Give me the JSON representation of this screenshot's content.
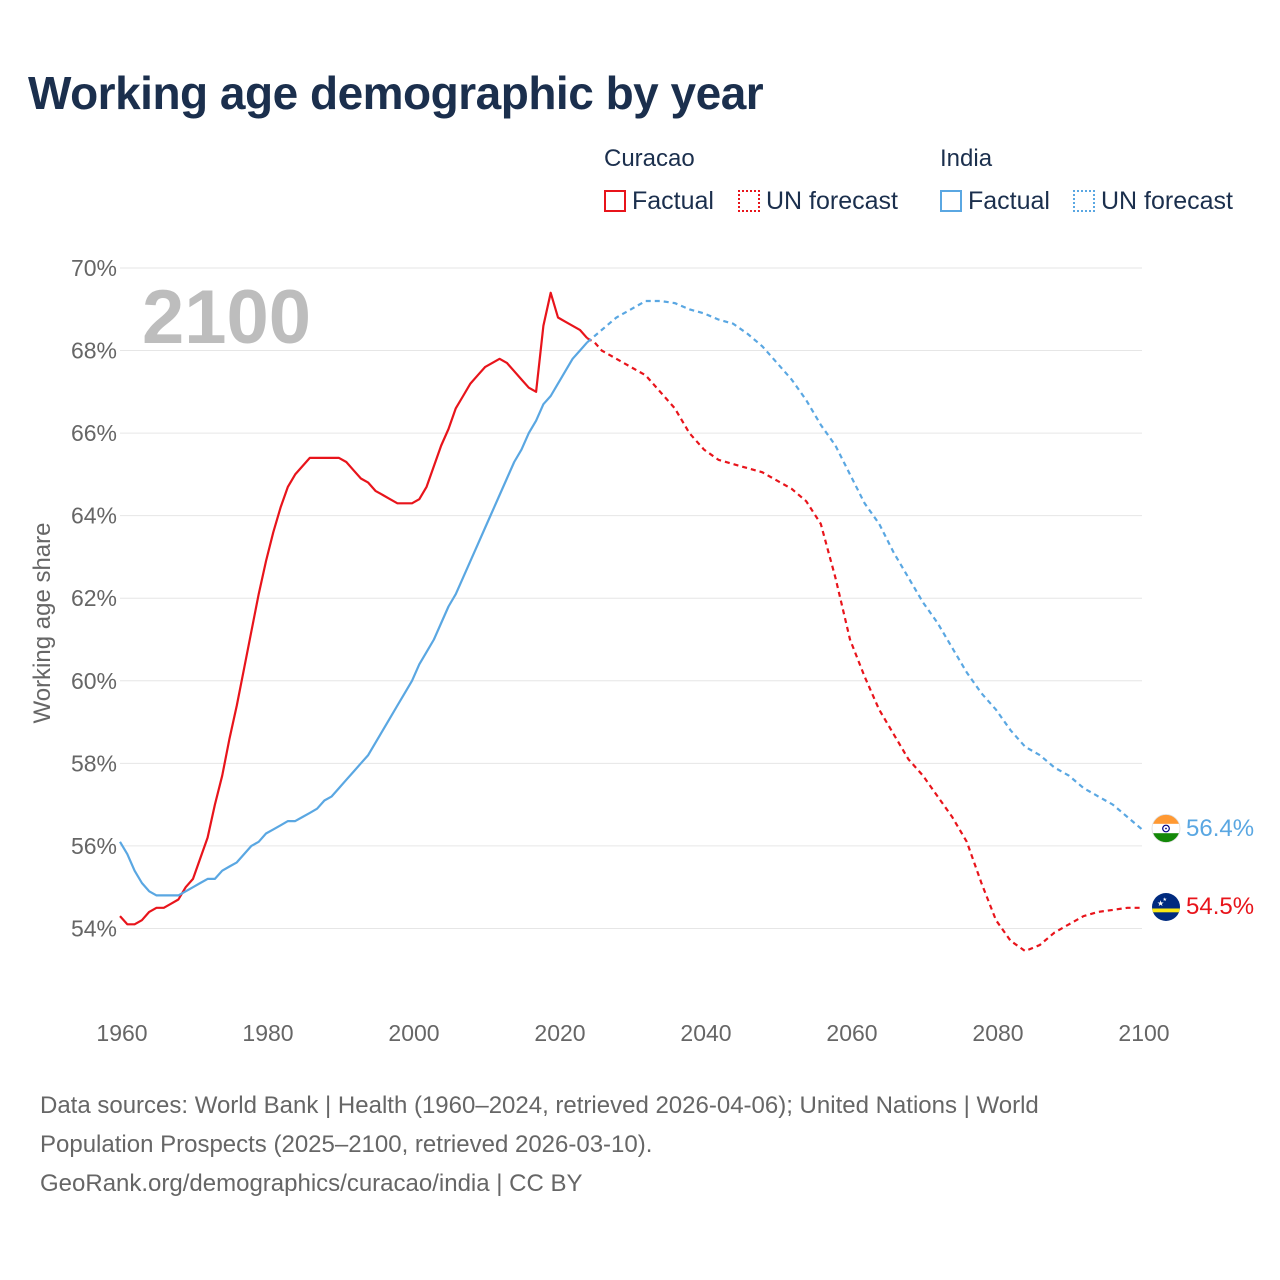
{
  "title": "Working age demographic by year",
  "legend": {
    "groups": [
      {
        "name": "Curacao",
        "color": "#e8141b",
        "items": [
          {
            "label": "Factual",
            "style": "solid"
          },
          {
            "label": "UN forecast",
            "style": "dotted"
          }
        ]
      },
      {
        "name": "India",
        "color": "#5aa7e2",
        "items": [
          {
            "label": "Factual",
            "style": "solid"
          },
          {
            "label": "UN forecast",
            "style": "dotted"
          }
        ]
      }
    ]
  },
  "sources": {
    "line1": "Data sources: World Bank | Health (1960–2024, retrieved 2026-04-06); United Nations | World",
    "line2": "Population Prospects (2025–2100, retrieved 2026-03-10).",
    "line3": "GeoRank.org/demographics/curacao/india | CC BY"
  },
  "chart_data": {
    "type": "line",
    "title": "Working age demographic by year",
    "year_watermark": "2100",
    "xlabel": "",
    "ylabel": "Working age share",
    "xlim": [
      1960,
      2100
    ],
    "ylim": [
      52,
      70
    ],
    "x_ticks": [
      {
        "value": 1960,
        "label": "1960"
      },
      {
        "value": 1980,
        "label": "1980"
      },
      {
        "value": 2000,
        "label": "2000"
      },
      {
        "value": 2020,
        "label": "2020"
      },
      {
        "value": 2040,
        "label": "2040"
      },
      {
        "value": 2060,
        "label": "2060"
      },
      {
        "value": 2080,
        "label": "2080"
      },
      {
        "value": 2100,
        "label": "2100"
      }
    ],
    "y_ticks": [
      {
        "value": 54,
        "label": "54%"
      },
      {
        "value": 56,
        "label": "56%"
      },
      {
        "value": 58,
        "label": "58%"
      },
      {
        "value": 60,
        "label": "60%"
      },
      {
        "value": 62,
        "label": "62%"
      },
      {
        "value": 64,
        "label": "64%"
      },
      {
        "value": 66,
        "label": "66%"
      },
      {
        "value": 68,
        "label": "68%"
      },
      {
        "value": 70,
        "label": "70%"
      }
    ],
    "grid": true,
    "factual_end_year": 2024,
    "series": [
      {
        "name": "Curacao",
        "color": "#e8141b",
        "end_label": "54.5%",
        "points": [
          [
            1960,
            54.3
          ],
          [
            1961,
            54.1
          ],
          [
            1962,
            54.1
          ],
          [
            1963,
            54.2
          ],
          [
            1964,
            54.4
          ],
          [
            1965,
            54.5
          ],
          [
            1966,
            54.5
          ],
          [
            1967,
            54.6
          ],
          [
            1968,
            54.7
          ],
          [
            1969,
            55.0
          ],
          [
            1970,
            55.2
          ],
          [
            1971,
            55.7
          ],
          [
            1972,
            56.2
          ],
          [
            1973,
            57.0
          ],
          [
            1974,
            57.7
          ],
          [
            1975,
            58.6
          ],
          [
            1976,
            59.4
          ],
          [
            1977,
            60.3
          ],
          [
            1978,
            61.2
          ],
          [
            1979,
            62.1
          ],
          [
            1980,
            62.9
          ],
          [
            1981,
            63.6
          ],
          [
            1982,
            64.2
          ],
          [
            1983,
            64.7
          ],
          [
            1984,
            65.0
          ],
          [
            1985,
            65.2
          ],
          [
            1986,
            65.4
          ],
          [
            1987,
            65.4
          ],
          [
            1988,
            65.4
          ],
          [
            1989,
            65.4
          ],
          [
            1990,
            65.4
          ],
          [
            1991,
            65.3
          ],
          [
            1992,
            65.1
          ],
          [
            1993,
            64.9
          ],
          [
            1994,
            64.8
          ],
          [
            1995,
            64.6
          ],
          [
            1996,
            64.5
          ],
          [
            1997,
            64.4
          ],
          [
            1998,
            64.3
          ],
          [
            1999,
            64.3
          ],
          [
            2000,
            64.3
          ],
          [
            2001,
            64.4
          ],
          [
            2002,
            64.7
          ],
          [
            2003,
            65.2
          ],
          [
            2004,
            65.7
          ],
          [
            2005,
            66.1
          ],
          [
            2006,
            66.6
          ],
          [
            2007,
            66.9
          ],
          [
            2008,
            67.2
          ],
          [
            2009,
            67.4
          ],
          [
            2010,
            67.6
          ],
          [
            2011,
            67.7
          ],
          [
            2012,
            67.8
          ],
          [
            2013,
            67.7
          ],
          [
            2014,
            67.5
          ],
          [
            2015,
            67.3
          ],
          [
            2016,
            67.1
          ],
          [
            2017,
            67.0
          ],
          [
            2018,
            68.6
          ],
          [
            2019,
            69.4
          ],
          [
            2020,
            68.8
          ],
          [
            2021,
            68.7
          ],
          [
            2022,
            68.6
          ],
          [
            2023,
            68.5
          ],
          [
            2024,
            68.3
          ],
          [
            2025,
            68.2
          ],
          [
            2026,
            68.0
          ],
          [
            2028,
            67.8
          ],
          [
            2030,
            67.6
          ],
          [
            2032,
            67.4
          ],
          [
            2034,
            67.0
          ],
          [
            2036,
            66.6
          ],
          [
            2038,
            66.0
          ],
          [
            2040,
            65.6
          ],
          [
            2042,
            65.35
          ],
          [
            2044,
            65.25
          ],
          [
            2046,
            65.15
          ],
          [
            2048,
            65.05
          ],
          [
            2050,
            64.85
          ],
          [
            2052,
            64.65
          ],
          [
            2054,
            64.35
          ],
          [
            2056,
            63.8
          ],
          [
            2058,
            62.5
          ],
          [
            2060,
            61.0
          ],
          [
            2062,
            60.1
          ],
          [
            2064,
            59.3
          ],
          [
            2066,
            58.7
          ],
          [
            2068,
            58.1
          ],
          [
            2070,
            57.7
          ],
          [
            2072,
            57.2
          ],
          [
            2074,
            56.7
          ],
          [
            2076,
            56.1
          ],
          [
            2078,
            55.1
          ],
          [
            2080,
            54.2
          ],
          [
            2082,
            53.7
          ],
          [
            2084,
            53.45
          ],
          [
            2086,
            53.6
          ],
          [
            2088,
            53.9
          ],
          [
            2090,
            54.1
          ],
          [
            2092,
            54.3
          ],
          [
            2094,
            54.4
          ],
          [
            2096,
            54.45
          ],
          [
            2098,
            54.5
          ],
          [
            2100,
            54.5
          ]
        ]
      },
      {
        "name": "India",
        "color": "#5aa7e2",
        "end_label": "56.4%",
        "points": [
          [
            1960,
            56.1
          ],
          [
            1961,
            55.8
          ],
          [
            1962,
            55.4
          ],
          [
            1963,
            55.1
          ],
          [
            1964,
            54.9
          ],
          [
            1965,
            54.8
          ],
          [
            1966,
            54.8
          ],
          [
            1967,
            54.8
          ],
          [
            1968,
            54.8
          ],
          [
            1969,
            54.9
          ],
          [
            1970,
            55.0
          ],
          [
            1971,
            55.1
          ],
          [
            1972,
            55.2
          ],
          [
            1973,
            55.2
          ],
          [
            1974,
            55.4
          ],
          [
            1975,
            55.5
          ],
          [
            1976,
            55.6
          ],
          [
            1977,
            55.8
          ],
          [
            1978,
            56.0
          ],
          [
            1979,
            56.1
          ],
          [
            1980,
            56.3
          ],
          [
            1981,
            56.4
          ],
          [
            1982,
            56.5
          ],
          [
            1983,
            56.6
          ],
          [
            1984,
            56.6
          ],
          [
            1985,
            56.7
          ],
          [
            1986,
            56.8
          ],
          [
            1987,
            56.9
          ],
          [
            1988,
            57.1
          ],
          [
            1989,
            57.2
          ],
          [
            1990,
            57.4
          ],
          [
            1991,
            57.6
          ],
          [
            1992,
            57.8
          ],
          [
            1993,
            58.0
          ],
          [
            1994,
            58.2
          ],
          [
            1995,
            58.5
          ],
          [
            1996,
            58.8
          ],
          [
            1997,
            59.1
          ],
          [
            1998,
            59.4
          ],
          [
            1999,
            59.7
          ],
          [
            2000,
            60.0
          ],
          [
            2001,
            60.4
          ],
          [
            2002,
            60.7
          ],
          [
            2003,
            61.0
          ],
          [
            2004,
            61.4
          ],
          [
            2005,
            61.8
          ],
          [
            2006,
            62.1
          ],
          [
            2007,
            62.5
          ],
          [
            2008,
            62.9
          ],
          [
            2009,
            63.3
          ],
          [
            2010,
            63.7
          ],
          [
            2011,
            64.1
          ],
          [
            2012,
            64.5
          ],
          [
            2013,
            64.9
          ],
          [
            2014,
            65.3
          ],
          [
            2015,
            65.6
          ],
          [
            2016,
            66.0
          ],
          [
            2017,
            66.3
          ],
          [
            2018,
            66.7
          ],
          [
            2019,
            66.9
          ],
          [
            2020,
            67.2
          ],
          [
            2021,
            67.5
          ],
          [
            2022,
            67.8
          ],
          [
            2023,
            68.0
          ],
          [
            2024,
            68.2
          ],
          [
            2025,
            68.35
          ],
          [
            2026,
            68.5
          ],
          [
            2028,
            68.8
          ],
          [
            2030,
            69.0
          ],
          [
            2032,
            69.2
          ],
          [
            2034,
            69.2
          ],
          [
            2036,
            69.15
          ],
          [
            2038,
            69.0
          ],
          [
            2040,
            68.9
          ],
          [
            2042,
            68.75
          ],
          [
            2044,
            68.65
          ],
          [
            2046,
            68.4
          ],
          [
            2048,
            68.1
          ],
          [
            2050,
            67.7
          ],
          [
            2052,
            67.3
          ],
          [
            2054,
            66.8
          ],
          [
            2056,
            66.2
          ],
          [
            2058,
            65.7
          ],
          [
            2060,
            65.0
          ],
          [
            2062,
            64.3
          ],
          [
            2064,
            63.8
          ],
          [
            2066,
            63.1
          ],
          [
            2068,
            62.5
          ],
          [
            2070,
            61.9
          ],
          [
            2072,
            61.4
          ],
          [
            2074,
            60.8
          ],
          [
            2076,
            60.2
          ],
          [
            2078,
            59.7
          ],
          [
            2080,
            59.3
          ],
          [
            2082,
            58.8
          ],
          [
            2084,
            58.4
          ],
          [
            2086,
            58.2
          ],
          [
            2088,
            57.9
          ],
          [
            2090,
            57.7
          ],
          [
            2092,
            57.4
          ],
          [
            2094,
            57.2
          ],
          [
            2096,
            57.0
          ],
          [
            2098,
            56.7
          ],
          [
            2100,
            56.4
          ]
        ]
      }
    ]
  }
}
